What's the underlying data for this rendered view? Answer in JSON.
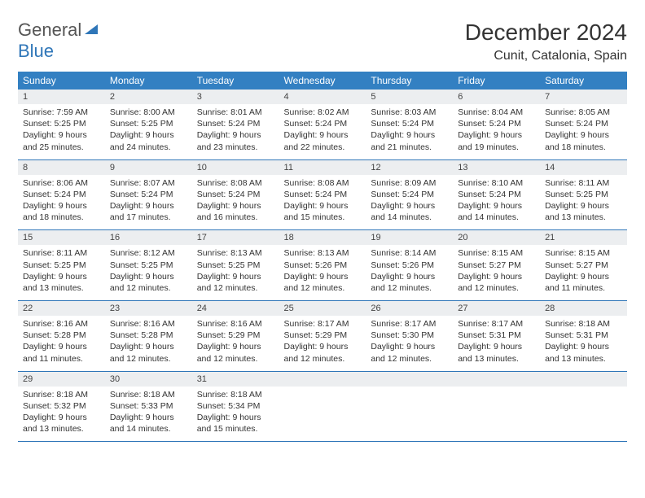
{
  "brand": {
    "word1": "General",
    "word2": "Blue"
  },
  "title": "December 2024",
  "location": "Cunit, Catalonia, Spain",
  "colors": {
    "header_bg": "#3380c2",
    "accent": "#2f76b8",
    "daynum_bg": "#eceef0",
    "text": "#333333",
    "page_bg": "#ffffff"
  },
  "weekdays": [
    "Sunday",
    "Monday",
    "Tuesday",
    "Wednesday",
    "Thursday",
    "Friday",
    "Saturday"
  ],
  "weeks": [
    [
      {
        "n": "1",
        "sunrise": "7:59 AM",
        "sunset": "5:25 PM",
        "dl": "9 hours and 25 minutes."
      },
      {
        "n": "2",
        "sunrise": "8:00 AM",
        "sunset": "5:25 PM",
        "dl": "9 hours and 24 minutes."
      },
      {
        "n": "3",
        "sunrise": "8:01 AM",
        "sunset": "5:24 PM",
        "dl": "9 hours and 23 minutes."
      },
      {
        "n": "4",
        "sunrise": "8:02 AM",
        "sunset": "5:24 PM",
        "dl": "9 hours and 22 minutes."
      },
      {
        "n": "5",
        "sunrise": "8:03 AM",
        "sunset": "5:24 PM",
        "dl": "9 hours and 21 minutes."
      },
      {
        "n": "6",
        "sunrise": "8:04 AM",
        "sunset": "5:24 PM",
        "dl": "9 hours and 19 minutes."
      },
      {
        "n": "7",
        "sunrise": "8:05 AM",
        "sunset": "5:24 PM",
        "dl": "9 hours and 18 minutes."
      }
    ],
    [
      {
        "n": "8",
        "sunrise": "8:06 AM",
        "sunset": "5:24 PM",
        "dl": "9 hours and 18 minutes."
      },
      {
        "n": "9",
        "sunrise": "8:07 AM",
        "sunset": "5:24 PM",
        "dl": "9 hours and 17 minutes."
      },
      {
        "n": "10",
        "sunrise": "8:08 AM",
        "sunset": "5:24 PM",
        "dl": "9 hours and 16 minutes."
      },
      {
        "n": "11",
        "sunrise": "8:08 AM",
        "sunset": "5:24 PM",
        "dl": "9 hours and 15 minutes."
      },
      {
        "n": "12",
        "sunrise": "8:09 AM",
        "sunset": "5:24 PM",
        "dl": "9 hours and 14 minutes."
      },
      {
        "n": "13",
        "sunrise": "8:10 AM",
        "sunset": "5:24 PM",
        "dl": "9 hours and 14 minutes."
      },
      {
        "n": "14",
        "sunrise": "8:11 AM",
        "sunset": "5:25 PM",
        "dl": "9 hours and 13 minutes."
      }
    ],
    [
      {
        "n": "15",
        "sunrise": "8:11 AM",
        "sunset": "5:25 PM",
        "dl": "9 hours and 13 minutes."
      },
      {
        "n": "16",
        "sunrise": "8:12 AM",
        "sunset": "5:25 PM",
        "dl": "9 hours and 12 minutes."
      },
      {
        "n": "17",
        "sunrise": "8:13 AM",
        "sunset": "5:25 PM",
        "dl": "9 hours and 12 minutes."
      },
      {
        "n": "18",
        "sunrise": "8:13 AM",
        "sunset": "5:26 PM",
        "dl": "9 hours and 12 minutes."
      },
      {
        "n": "19",
        "sunrise": "8:14 AM",
        "sunset": "5:26 PM",
        "dl": "9 hours and 12 minutes."
      },
      {
        "n": "20",
        "sunrise": "8:15 AM",
        "sunset": "5:27 PM",
        "dl": "9 hours and 12 minutes."
      },
      {
        "n": "21",
        "sunrise": "8:15 AM",
        "sunset": "5:27 PM",
        "dl": "9 hours and 11 minutes."
      }
    ],
    [
      {
        "n": "22",
        "sunrise": "8:16 AM",
        "sunset": "5:28 PM",
        "dl": "9 hours and 11 minutes."
      },
      {
        "n": "23",
        "sunrise": "8:16 AM",
        "sunset": "5:28 PM",
        "dl": "9 hours and 12 minutes."
      },
      {
        "n": "24",
        "sunrise": "8:16 AM",
        "sunset": "5:29 PM",
        "dl": "9 hours and 12 minutes."
      },
      {
        "n": "25",
        "sunrise": "8:17 AM",
        "sunset": "5:29 PM",
        "dl": "9 hours and 12 minutes."
      },
      {
        "n": "26",
        "sunrise": "8:17 AM",
        "sunset": "5:30 PM",
        "dl": "9 hours and 12 minutes."
      },
      {
        "n": "27",
        "sunrise": "8:17 AM",
        "sunset": "5:31 PM",
        "dl": "9 hours and 13 minutes."
      },
      {
        "n": "28",
        "sunrise": "8:18 AM",
        "sunset": "5:31 PM",
        "dl": "9 hours and 13 minutes."
      }
    ],
    [
      {
        "n": "29",
        "sunrise": "8:18 AM",
        "sunset": "5:32 PM",
        "dl": "9 hours and 13 minutes."
      },
      {
        "n": "30",
        "sunrise": "8:18 AM",
        "sunset": "5:33 PM",
        "dl": "9 hours and 14 minutes."
      },
      {
        "n": "31",
        "sunrise": "8:18 AM",
        "sunset": "5:34 PM",
        "dl": "9 hours and 15 minutes."
      },
      null,
      null,
      null,
      null
    ]
  ],
  "labels": {
    "sunrise": "Sunrise:",
    "sunset": "Sunset:",
    "daylight": "Daylight:"
  }
}
